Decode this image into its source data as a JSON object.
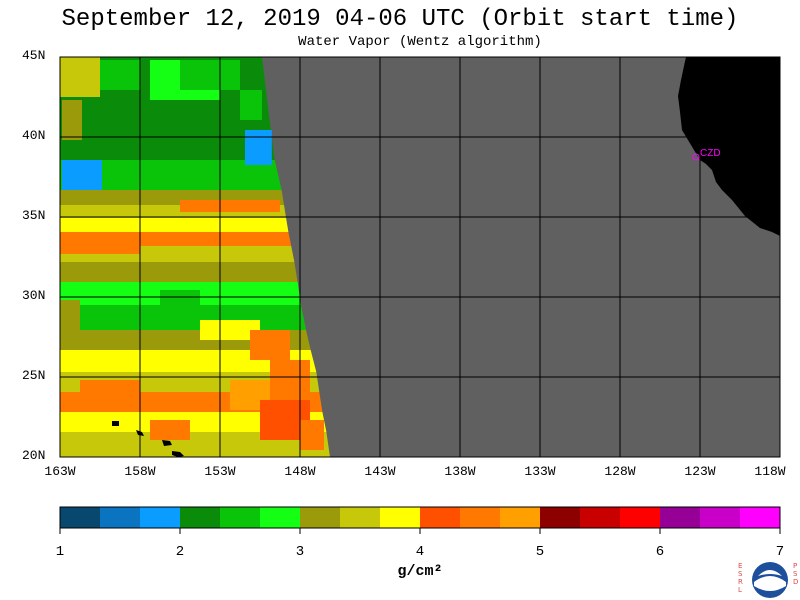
{
  "header": {
    "title": "September 12, 2019  04-06 UTC  (Orbit start time)",
    "subtitle": "Water Vapor (Wentz algorithm)"
  },
  "map": {
    "extent": {
      "lon_min": -163,
      "lon_max": -118,
      "lat_min": 20,
      "lat_max": 45
    },
    "lat_labels": [
      "45N",
      "40N",
      "35N",
      "30N",
      "25N",
      "20N"
    ],
    "lon_labels": [
      "163W",
      "158W",
      "153W",
      "148W",
      "143W",
      "138W",
      "133W",
      "128W",
      "123W",
      "118W"
    ],
    "station_label": "CZD",
    "colors": {
      "no_data": "#606060",
      "land": "#000000",
      "station": "#ff00ff"
    }
  },
  "colorbar": {
    "ticks": [
      "1",
      "2",
      "3",
      "4",
      "5",
      "6",
      "7"
    ],
    "units": "g/cm²",
    "colors": [
      "#08486e",
      "#0a74c0",
      "#0a9cff",
      "#0a8c0a",
      "#0ac40a",
      "#14ff14",
      "#9a9a0a",
      "#c8c80a",
      "#ffff00",
      "#ff5000",
      "#ff7800",
      "#ffa000",
      "#8c0000",
      "#c80000",
      "#ff0000",
      "#960096",
      "#c800c8",
      "#ff00ff"
    ]
  },
  "logo": {
    "left_text": "ESRL",
    "right_text": "PSD",
    "name": "NOAA"
  }
}
